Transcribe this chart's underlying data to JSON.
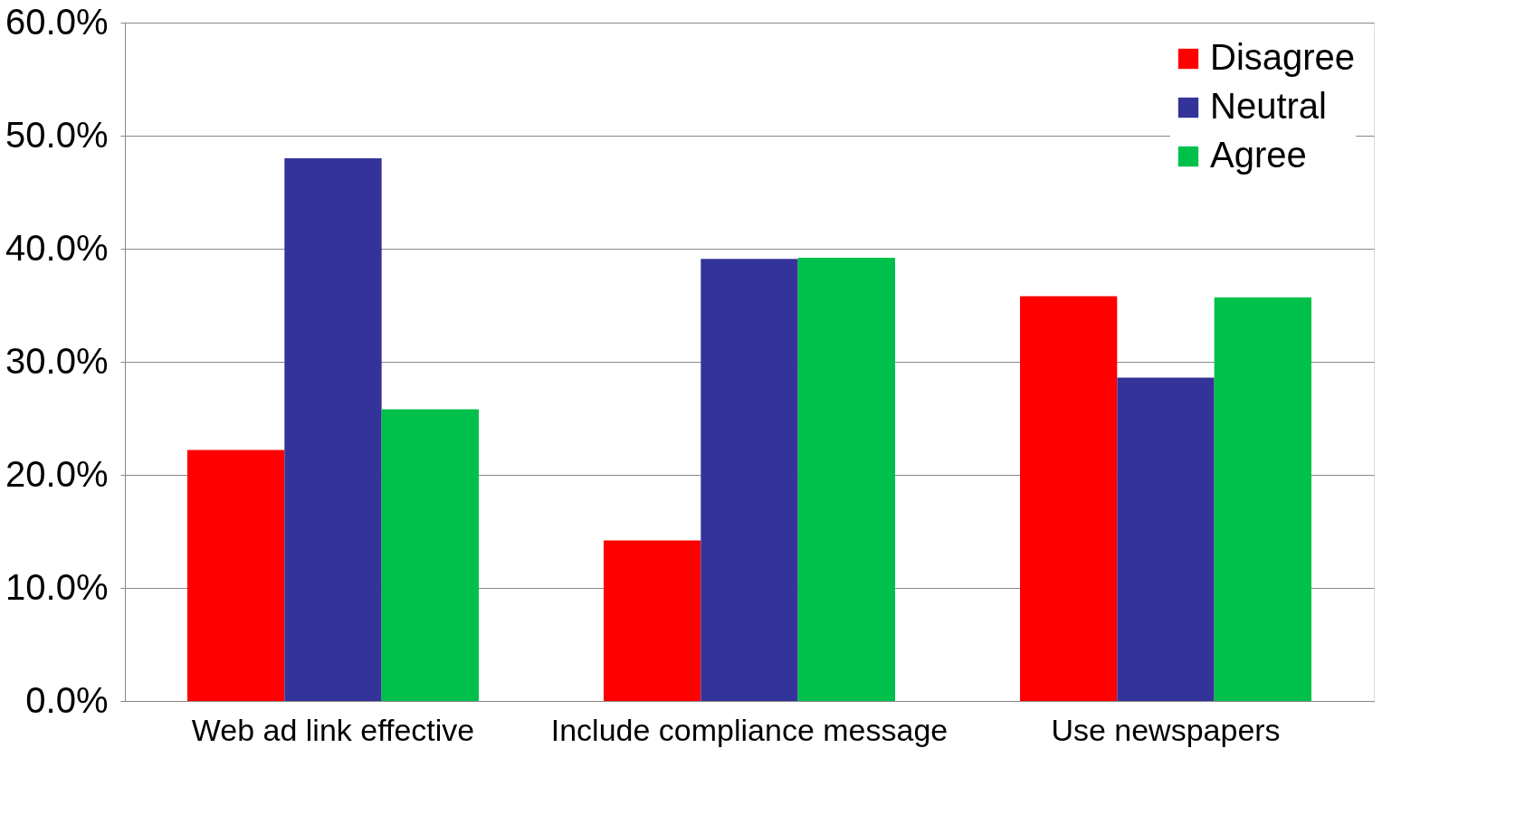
{
  "chart_data": {
    "type": "bar",
    "categories": [
      "Web ad link effective",
      "Include compliance message",
      "Use newspapers"
    ],
    "series": [
      {
        "name": "Disagree",
        "color": "#ff0000",
        "values": [
          22.2,
          14.2,
          35.8
        ]
      },
      {
        "name": "Neutral",
        "color": "#333399",
        "values": [
          48.0,
          39.1,
          28.6
        ]
      },
      {
        "name": "Agree",
        "color": "#00c04c",
        "values": [
          25.8,
          39.2,
          35.7
        ]
      }
    ],
    "ylim": [
      0,
      60
    ],
    "yticks": [
      {
        "value": 0,
        "label": "0.0%"
      },
      {
        "value": 10,
        "label": "10.0%"
      },
      {
        "value": 20,
        "label": "20.0%"
      },
      {
        "value": 30,
        "label": "30.0%"
      },
      {
        "value": 40,
        "label": "40.0%"
      },
      {
        "value": 50,
        "label": "50.0%"
      },
      {
        "value": 60,
        "label": "60.0%"
      }
    ],
    "grid": "y",
    "legend": "top right"
  }
}
